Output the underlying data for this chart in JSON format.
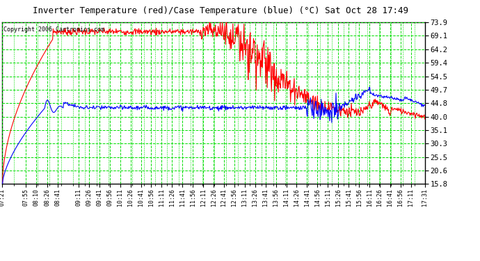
{
  "title": "Inverter Temperature (red)/Case Temperature (blue) (°C) Sat Oct 28 17:49",
  "copyright": "Copyright 2006 Cartronics.com",
  "yticks": [
    15.8,
    20.6,
    25.5,
    30.3,
    35.1,
    40.0,
    44.8,
    49.7,
    54.5,
    59.4,
    64.2,
    69.1,
    73.9
  ],
  "ymin": 15.8,
  "ymax": 73.9,
  "plot_bg_color": "#ffffff",
  "grid_color": "#00dd00",
  "red_color": "#ff0000",
  "blue_color": "#0000ff",
  "outer_bg": "#ffffff",
  "n_points": 800,
  "xtick_labels": [
    "07:21",
    "07:55",
    "08:10",
    "08:26",
    "08:41",
    "09:11",
    "09:26",
    "09:41",
    "09:56",
    "10:11",
    "10:26",
    "10:41",
    "10:56",
    "11:11",
    "11:26",
    "11:41",
    "11:56",
    "12:11",
    "12:26",
    "12:41",
    "12:56",
    "13:11",
    "13:26",
    "13:41",
    "13:56",
    "14:11",
    "14:26",
    "14:41",
    "14:56",
    "15:11",
    "15:26",
    "15:41",
    "15:56",
    "16:11",
    "16:26",
    "16:41",
    "16:56",
    "17:11",
    "17:31"
  ]
}
